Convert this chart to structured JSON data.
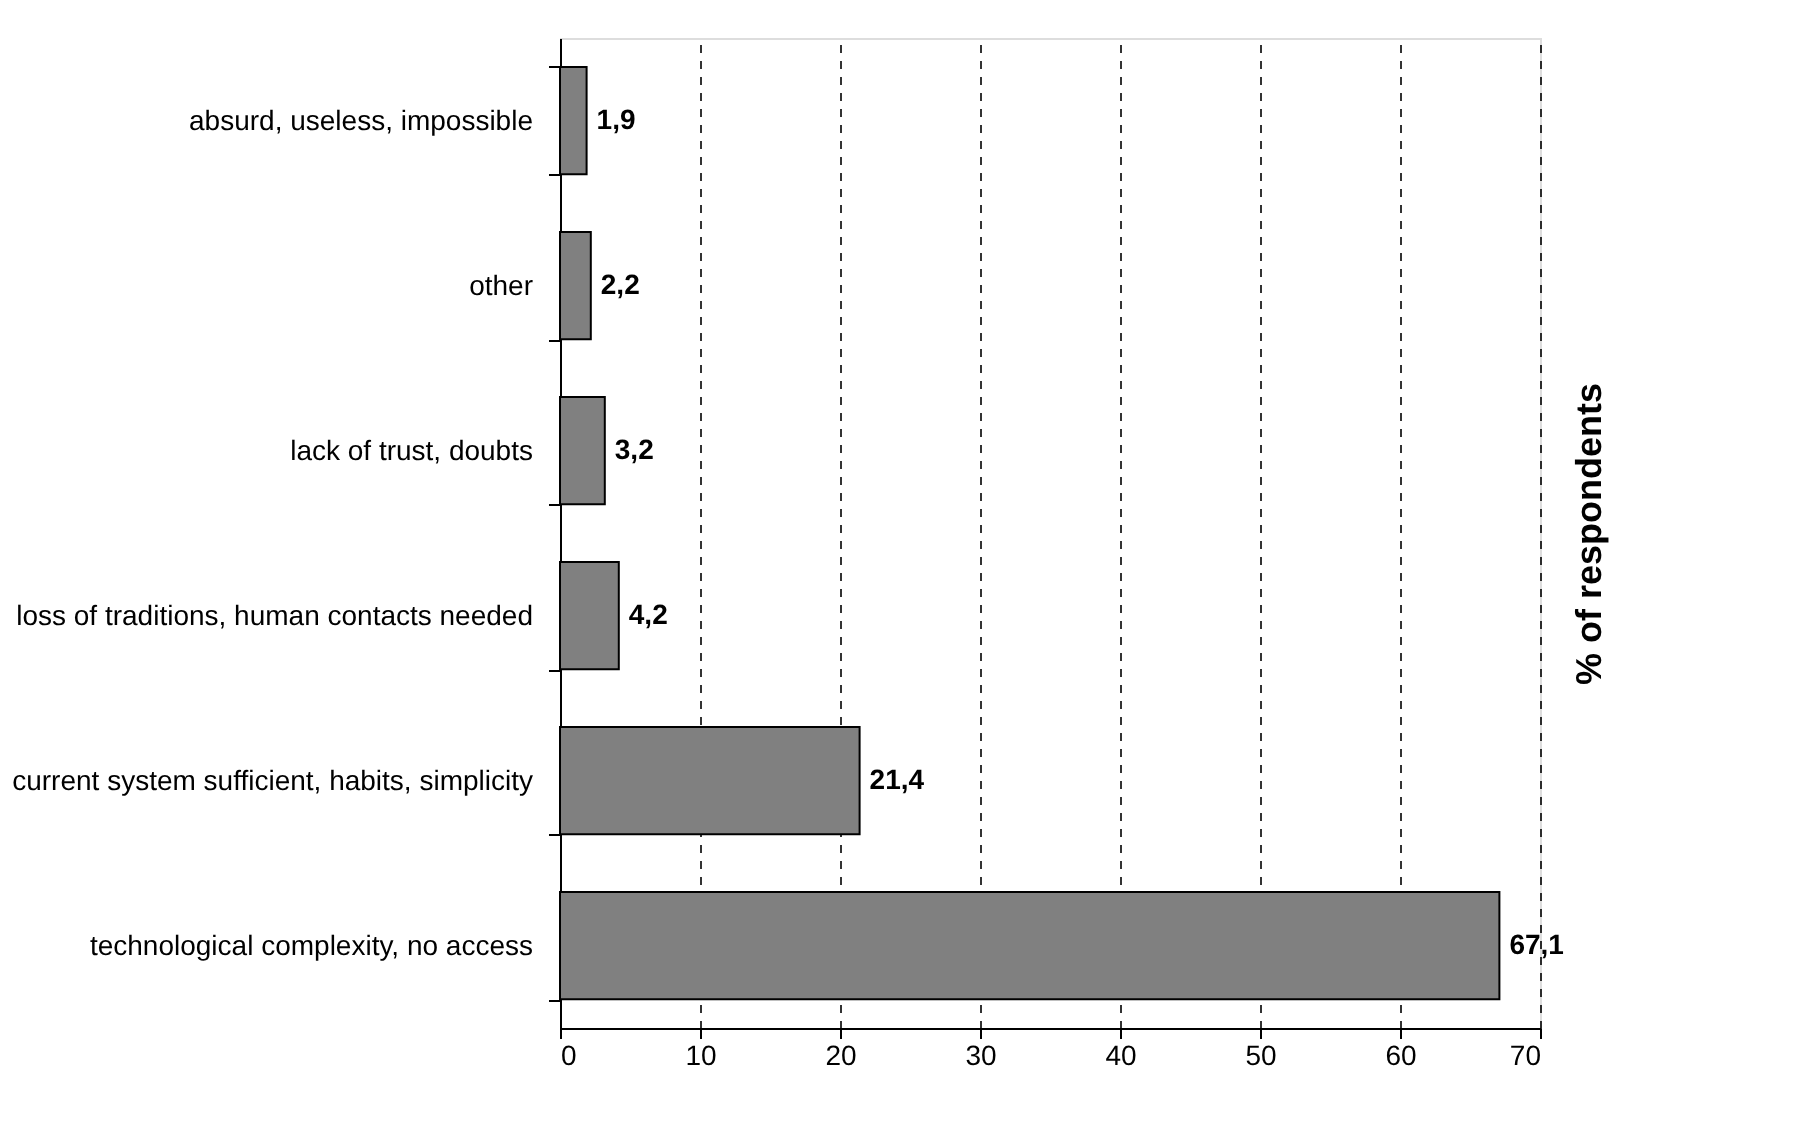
{
  "chart_data": {
    "type": "bar",
    "orientation": "horizontal",
    "ylabel": "% of respondents",
    "categories": [
      "absurd, useless, impossible",
      "other",
      "lack of trust, doubts",
      "loss of traditions, human contacts needed",
      "current system sufficient, habits, simplicity",
      "technological complexity, no access"
    ],
    "values": [
      1.9,
      2.2,
      3.2,
      4.2,
      21.4,
      67.1
    ],
    "value_labels": [
      "1,9",
      "2,2",
      "3,2",
      "4,2",
      "21,4",
      "67,1"
    ],
    "color": "#808080",
    "xlim": [
      0,
      70
    ],
    "xticks": [
      0,
      10,
      20,
      30,
      40,
      50,
      60,
      70
    ],
    "grid": "x"
  }
}
